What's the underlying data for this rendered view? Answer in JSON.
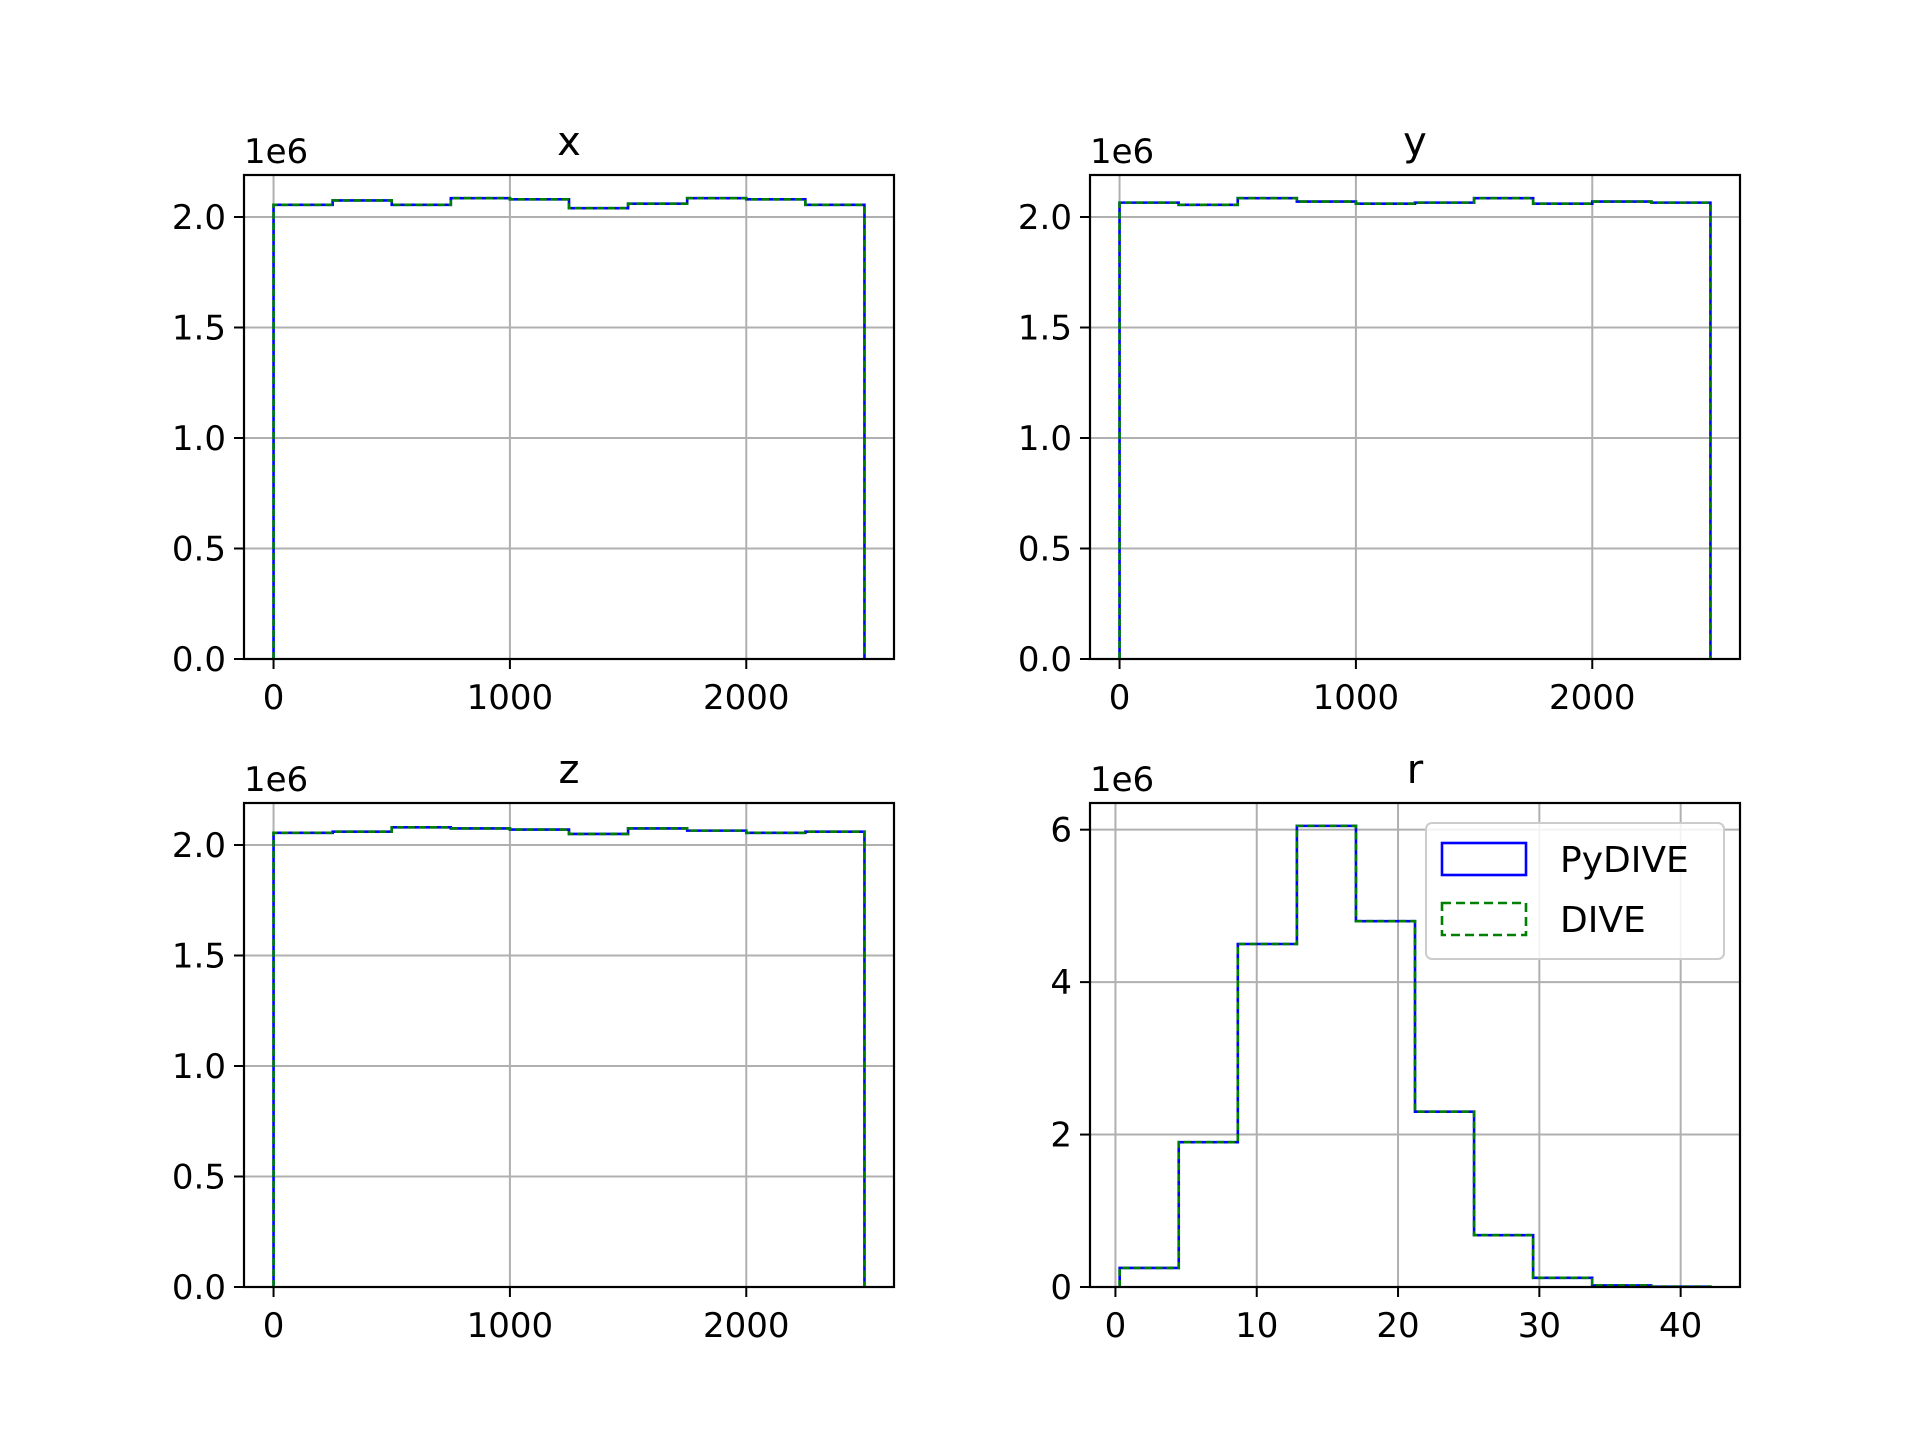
{
  "colors": {
    "pydive": "#0000ff",
    "dive": "#008000",
    "grid": "#b0b0b0",
    "axes": "#000000",
    "background": "#ffffff"
  },
  "chart_data": [
    {
      "type": "histogram-step",
      "title": "x",
      "offset_text": "1e6",
      "bin_edges": [
        0,
        250,
        500,
        750,
        1000,
        1250,
        1500,
        1750,
        2000,
        2250,
        2500
      ],
      "xlim": [
        -125,
        2625
      ],
      "ylim": [
        0,
        2.19
      ],
      "xticks": [
        0,
        1000,
        2000
      ],
      "xtick_labels": [
        "0",
        "1000",
        "2000"
      ],
      "yticks": [
        0,
        0.5,
        1.0,
        1.5,
        2.0
      ],
      "ytick_labels": [
        "0.0",
        "0.5",
        "1.0",
        "1.5",
        "2.0"
      ],
      "grid": true,
      "series": [
        {
          "name": "PyDIVE",
          "style": "solid",
          "values": [
            2.055,
            2.075,
            2.055,
            2.085,
            2.08,
            2.04,
            2.06,
            2.085,
            2.08,
            2.055
          ]
        },
        {
          "name": "DIVE",
          "style": "dashed",
          "values": [
            2.055,
            2.075,
            2.055,
            2.085,
            2.08,
            2.04,
            2.06,
            2.085,
            2.08,
            2.055
          ]
        }
      ]
    },
    {
      "type": "histogram-step",
      "title": "y",
      "offset_text": "1e6",
      "bin_edges": [
        0,
        250,
        500,
        750,
        1000,
        1250,
        1500,
        1750,
        2000,
        2250,
        2500
      ],
      "xlim": [
        -125,
        2625
      ],
      "ylim": [
        0,
        2.19
      ],
      "xticks": [
        0,
        1000,
        2000
      ],
      "xtick_labels": [
        "0",
        "1000",
        "2000"
      ],
      "yticks": [
        0,
        0.5,
        1.0,
        1.5,
        2.0
      ],
      "ytick_labels": [
        "0.0",
        "0.5",
        "1.0",
        "1.5",
        "2.0"
      ],
      "grid": true,
      "series": [
        {
          "name": "PyDIVE",
          "style": "solid",
          "values": [
            2.065,
            2.055,
            2.085,
            2.07,
            2.06,
            2.065,
            2.085,
            2.06,
            2.07,
            2.065
          ]
        },
        {
          "name": "DIVE",
          "style": "dashed",
          "values": [
            2.065,
            2.055,
            2.085,
            2.07,
            2.06,
            2.065,
            2.085,
            2.06,
            2.07,
            2.065
          ]
        }
      ]
    },
    {
      "type": "histogram-step",
      "title": "z",
      "offset_text": "1e6",
      "bin_edges": [
        0,
        250,
        500,
        750,
        1000,
        1250,
        1500,
        1750,
        2000,
        2250,
        2500
      ],
      "xlim": [
        -125,
        2625
      ],
      "ylim": [
        0,
        2.19
      ],
      "xticks": [
        0,
        1000,
        2000
      ],
      "xtick_labels": [
        "0",
        "1000",
        "2000"
      ],
      "yticks": [
        0,
        0.5,
        1.0,
        1.5,
        2.0
      ],
      "ytick_labels": [
        "0.0",
        "0.5",
        "1.0",
        "1.5",
        "2.0"
      ],
      "grid": true,
      "series": [
        {
          "name": "PyDIVE",
          "style": "solid",
          "values": [
            2.055,
            2.06,
            2.08,
            2.075,
            2.07,
            2.05,
            2.075,
            2.065,
            2.055,
            2.06
          ]
        },
        {
          "name": "DIVE",
          "style": "dashed",
          "values": [
            2.055,
            2.06,
            2.08,
            2.075,
            2.07,
            2.05,
            2.075,
            2.065,
            2.055,
            2.06
          ]
        }
      ]
    },
    {
      "type": "histogram-step",
      "title": "r",
      "offset_text": "1e6",
      "bin_edges": [
        0.3,
        4.48,
        8.66,
        12.84,
        17.02,
        21.2,
        25.38,
        29.56,
        33.74,
        37.92,
        42.1
      ],
      "xlim": [
        -1.8,
        44.2
      ],
      "ylim": [
        0,
        6.35
      ],
      "xticks": [
        0,
        10,
        20,
        30,
        40
      ],
      "xtick_labels": [
        "0",
        "10",
        "20",
        "30",
        "40"
      ],
      "yticks": [
        0,
        2,
        4,
        6
      ],
      "ytick_labels": [
        "0",
        "2",
        "4",
        "6"
      ],
      "grid": true,
      "legend": {
        "placement": "upper right",
        "entries": [
          {
            "label": "PyDIVE",
            "style": "solid"
          },
          {
            "label": "DIVE",
            "style": "dashed"
          }
        ]
      },
      "series": [
        {
          "name": "PyDIVE",
          "style": "solid",
          "values": [
            0.25,
            1.9,
            4.5,
            6.05,
            4.8,
            2.3,
            0.68,
            0.12,
            0.02,
            0.005
          ]
        },
        {
          "name": "DIVE",
          "style": "dashed",
          "values": [
            0.25,
            1.9,
            4.5,
            6.05,
            4.8,
            2.3,
            0.68,
            0.12,
            0.02,
            0.005
          ]
        }
      ]
    }
  ]
}
